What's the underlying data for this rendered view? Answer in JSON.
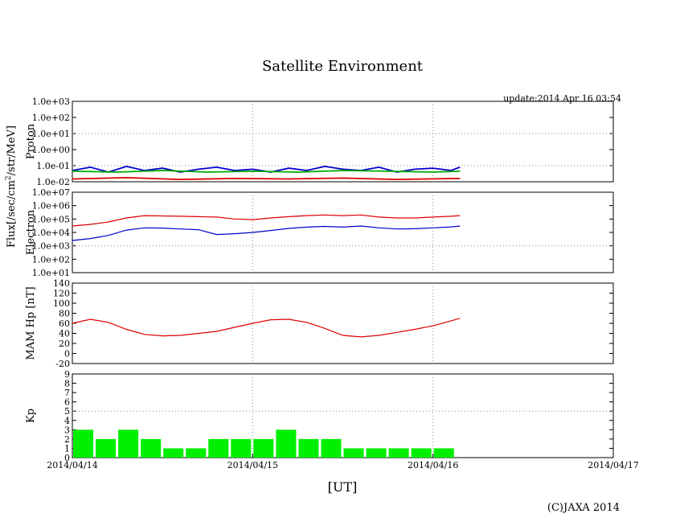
{
  "page": {
    "title": "Satellite Environment",
    "update": "update:2014 Apr 16 03:54",
    "copyright": "(C)JAXA 2014"
  },
  "chart_data": [
    {
      "id": "proton",
      "type": "line",
      "ylabel": "Proton",
      "yscale": "log",
      "ylim": [
        0.01,
        1000
      ],
      "yticks": [
        "1.0e-02",
        "1.0e-01",
        "1.0e+00",
        "1.0e+01",
        "1.0e+02",
        "1.0e+03"
      ],
      "xlim": [
        "2014/04/14",
        "2014/04/17"
      ],
      "series": [
        {
          "color": "#0000cc",
          "x": [
            0,
            0.1,
            0.2,
            0.3,
            0.4,
            0.5,
            0.6,
            0.7,
            0.8,
            0.9,
            1.0,
            1.1,
            1.2,
            1.3,
            1.4,
            1.5,
            1.6,
            1.7,
            1.8,
            1.9,
            2.0,
            2.1,
            2.15
          ],
          "y": [
            0.05,
            0.08,
            0.04,
            0.09,
            0.05,
            0.07,
            0.04,
            0.06,
            0.08,
            0.05,
            0.06,
            0.04,
            0.07,
            0.05,
            0.09,
            0.06,
            0.05,
            0.08,
            0.04,
            0.06,
            0.07,
            0.05,
            0.08
          ]
        },
        {
          "color": "#00aa00",
          "x": [
            0,
            0.25,
            0.5,
            0.75,
            1.0,
            1.25,
            1.5,
            1.75,
            2.0,
            2.15
          ],
          "y": [
            0.045,
            0.04,
            0.05,
            0.04,
            0.045,
            0.04,
            0.05,
            0.045,
            0.04,
            0.045
          ]
        },
        {
          "color": "#dd0000",
          "x": [
            0,
            0.3,
            0.6,
            0.9,
            1.2,
            1.5,
            1.8,
            2.15
          ],
          "y": [
            0.015,
            0.018,
            0.014,
            0.016,
            0.015,
            0.017,
            0.014,
            0.016
          ]
        }
      ]
    },
    {
      "id": "electron",
      "type": "line",
      "ylabel": "Electron",
      "yscale": "log",
      "ylim": [
        10,
        10000000
      ],
      "yticks": [
        "1.0e+01",
        "1.0e+02",
        "1.0e+03",
        "1.0e+04",
        "1.0e+05",
        "1.0e+06",
        "1.0e+07"
      ],
      "xlim": [
        "2014/04/14",
        "2014/04/17"
      ],
      "series": [
        {
          "color": "#dd0000",
          "x": [
            0,
            0.1,
            0.2,
            0.3,
            0.4,
            0.5,
            0.6,
            0.7,
            0.8,
            0.9,
            1.0,
            1.1,
            1.2,
            1.3,
            1.4,
            1.5,
            1.6,
            1.7,
            1.8,
            1.9,
            2.0,
            2.1,
            2.15
          ],
          "y": [
            30000,
            40000,
            60000,
            120000,
            180000,
            170000,
            160000,
            150000,
            140000,
            100000,
            90000,
            120000,
            150000,
            180000,
            200000,
            180000,
            200000,
            140000,
            120000,
            120000,
            140000,
            160000,
            180000
          ]
        },
        {
          "color": "#0000cc",
          "x": [
            0,
            0.1,
            0.2,
            0.3,
            0.4,
            0.5,
            0.6,
            0.7,
            0.8,
            0.9,
            1.0,
            1.1,
            1.2,
            1.3,
            1.4,
            1.5,
            1.6,
            1.7,
            1.8,
            1.9,
            2.0,
            2.1,
            2.15
          ],
          "y": [
            2500,
            3500,
            6000,
            15000,
            22000,
            21000,
            18000,
            16000,
            7000,
            8000,
            10000,
            14000,
            20000,
            25000,
            28000,
            25000,
            30000,
            22000,
            18000,
            19000,
            22000,
            26000,
            30000
          ]
        }
      ]
    },
    {
      "id": "mamhp",
      "type": "line",
      "ylabel": "MAM Hp [nT]",
      "ylim": [
        -20,
        140
      ],
      "yticks": [
        "-20",
        "0",
        "20",
        "40",
        "60",
        "80",
        "100",
        "120",
        "140"
      ],
      "xlim": [
        "2014/04/14",
        "2014/04/17"
      ],
      "series": [
        {
          "color": "#dd0000",
          "x": [
            0,
            0.1,
            0.2,
            0.3,
            0.4,
            0.5,
            0.6,
            0.7,
            0.8,
            0.9,
            1.0,
            1.1,
            1.2,
            1.3,
            1.4,
            1.5,
            1.6,
            1.7,
            1.8,
            1.9,
            2.0,
            2.1,
            2.15
          ],
          "y": [
            60,
            68,
            62,
            48,
            38,
            35,
            36,
            40,
            44,
            52,
            60,
            67,
            68,
            62,
            50,
            36,
            33,
            36,
            42,
            48,
            55,
            65,
            70
          ]
        }
      ]
    },
    {
      "id": "kp",
      "type": "bar",
      "ylabel": "Kp",
      "ylim": [
        0,
        9
      ],
      "yticks": [
        "0",
        "1",
        "2",
        "3",
        "4",
        "5",
        "6",
        "7",
        "8",
        "9"
      ],
      "xlim": [
        "2014/04/14",
        "2014/04/17"
      ],
      "bar_color": "#00ee00",
      "bar_width_days": 0.125,
      "x_start": [
        0,
        0.125,
        0.25,
        0.375,
        0.5,
        0.625,
        0.75,
        0.875,
        1.0,
        1.125,
        1.25,
        1.375,
        1.5,
        1.625,
        1.75,
        1.875,
        2.0
      ],
      "values": [
        3,
        2,
        3,
        2,
        1,
        1,
        2,
        2,
        2,
        3,
        2,
        2,
        1,
        1,
        1,
        1,
        1
      ]
    }
  ],
  "axes": {
    "xticks": [
      "2014/04/14",
      "2014/04/15",
      "2014/04/16",
      "2014/04/17"
    ],
    "xlabel": "[UT]",
    "flux_label_part1": "Flux[/sec/cm",
    "flux_label_sup": "2",
    "flux_label_part2": "/str/MeV]"
  }
}
